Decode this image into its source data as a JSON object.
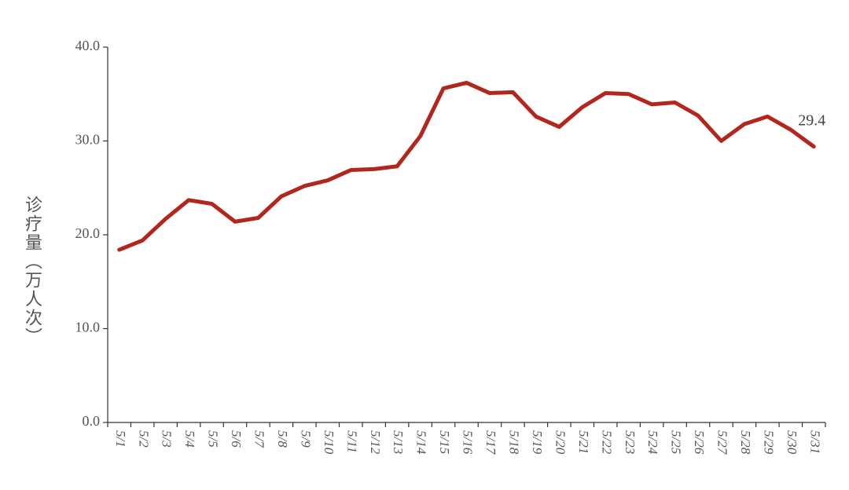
{
  "chart_data": {
    "type": "line",
    "y_label": "诊疗量（万人次）",
    "categories": [
      "5/1",
      "5/2",
      "5/3",
      "5/4",
      "5/5",
      "5/6",
      "5/7",
      "5/8",
      "5/9",
      "5/10",
      "5/11",
      "5/12",
      "5/13",
      "5/14",
      "5/15",
      "5/16",
      "5/17",
      "5/18",
      "5/19",
      "5/20",
      "5/21",
      "5/22",
      "5/23",
      "5/24",
      "5/25",
      "5/26",
      "5/27",
      "5/28",
      "5/29",
      "5/30",
      "5/31"
    ],
    "values": [
      18.4,
      19.4,
      21.7,
      23.7,
      23.3,
      21.4,
      21.8,
      24.1,
      25.2,
      25.8,
      26.9,
      27.0,
      27.3,
      30.5,
      35.6,
      36.2,
      35.1,
      35.2,
      32.6,
      31.5,
      33.6,
      35.1,
      35.0,
      33.9,
      34.1,
      32.7,
      30.0,
      31.8,
      32.6,
      31.2,
      29.4
    ],
    "color": "#b3261e",
    "ylim": [
      0,
      40
    ],
    "yticks": [
      {
        "value": 0,
        "label": "0.0"
      },
      {
        "value": 10,
        "label": "10.0"
      },
      {
        "value": 20,
        "label": "20.0"
      },
      {
        "value": 30,
        "label": "30.0"
      },
      {
        "value": 40,
        "label": "40.0"
      }
    ],
    "grid": false
  }
}
